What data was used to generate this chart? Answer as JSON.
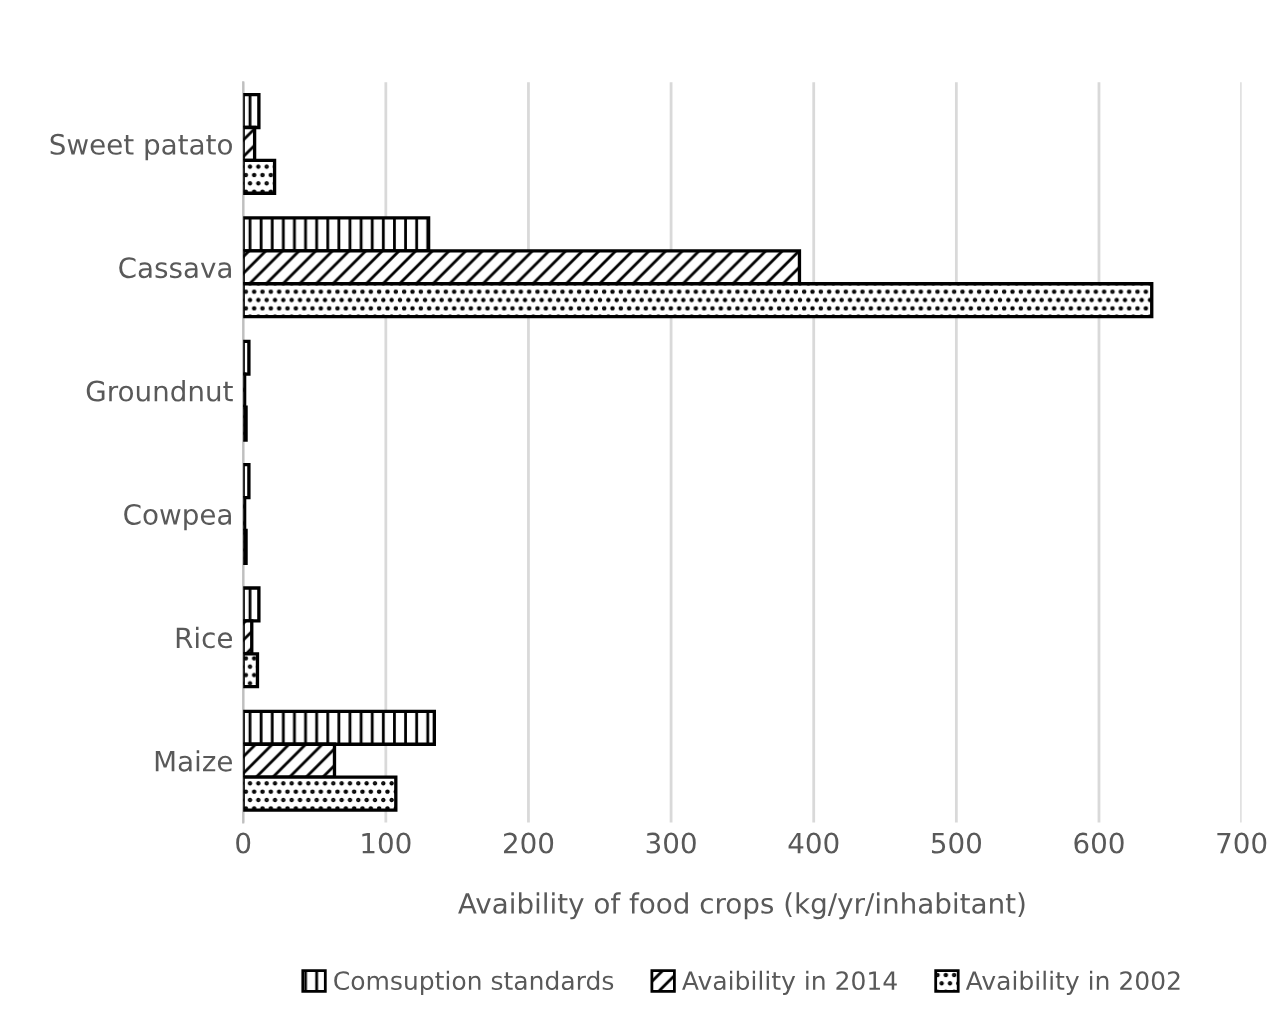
{
  "chart_data": {
    "type": "bar",
    "orientation": "horizontal",
    "xlabel": "Avaibility of food crops (kg/yr/inhabitant)",
    "categories": [
      "Sweet patato",
      "Cassava",
      "Groundnut",
      "Cowpea",
      "Rice",
      "Maize"
    ],
    "series": [
      {
        "name": "Comsuption standards",
        "color": "#000000",
        "values": [
          11,
          130,
          4,
          4,
          11,
          134
        ]
      },
      {
        "name": "Avaibility in 2014",
        "color": "#000000",
        "values": [
          8,
          390,
          1,
          1,
          6,
          64
        ]
      },
      {
        "name": "Avaibility in 2002",
        "color": "#000000",
        "values": [
          22,
          637,
          2,
          2,
          10,
          107
        ]
      }
    ],
    "xlim": [
      0,
      700
    ],
    "xticks": [
      0,
      100,
      200,
      300,
      400,
      500,
      600,
      700
    ],
    "grid": "x",
    "legend": "bottom"
  }
}
